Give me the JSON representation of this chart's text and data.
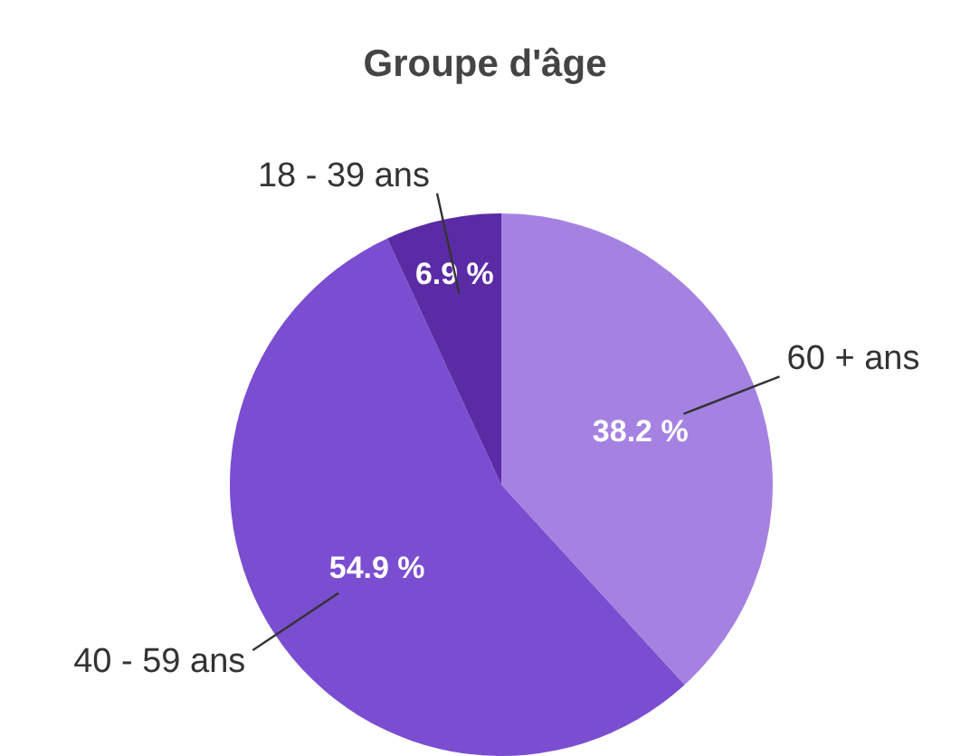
{
  "chart_data": {
    "type": "pie",
    "title": "Groupe d'âge",
    "categories": [
      "60 + ans",
      "40 - 59 ans",
      "18 - 39 ans"
    ],
    "values": [
      38.2,
      54.9,
      6.9
    ],
    "colors": [
      "#a582e2",
      "#7b4dd0",
      "#5b2ba6"
    ],
    "value_labels": [
      "38.2 %",
      "54.9 %",
      "6.9 %"
    ],
    "legend": false
  }
}
